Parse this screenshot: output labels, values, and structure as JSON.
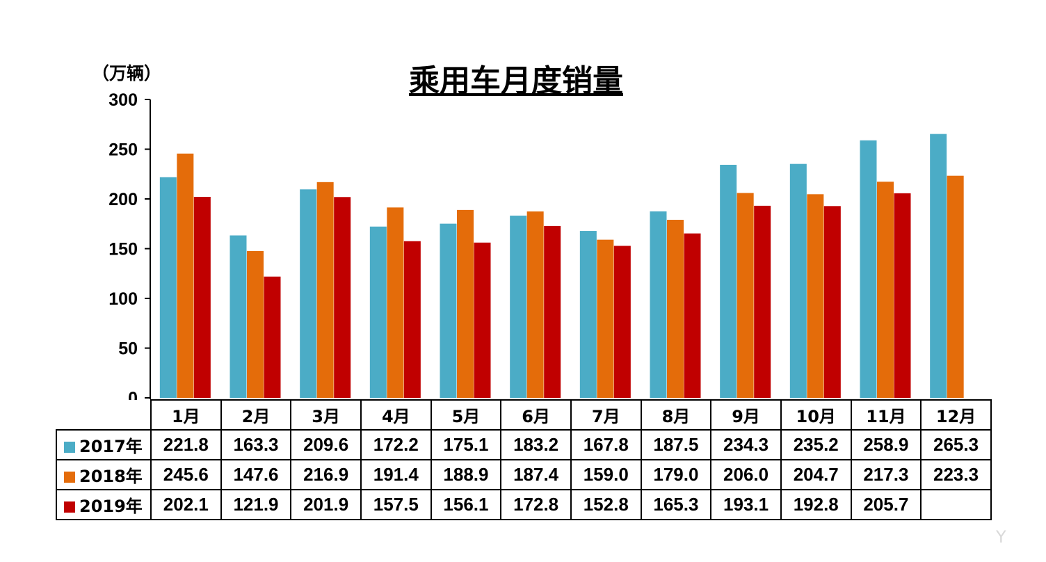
{
  "unit_label": "（万辆）",
  "watermark_text": "Y",
  "colors": {
    "2017年": "#4BACC6",
    "2018年": "#E46C0A",
    "2019年": "#C00000"
  },
  "chart_data": {
    "type": "bar",
    "title": "乘用车月度销量",
    "ylabel": "（万辆）",
    "xlabel": "",
    "ylim": [
      0,
      300
    ],
    "yticks": [
      "0",
      "50",
      "100",
      "150",
      "200",
      "250",
      "300"
    ],
    "categories": [
      "1月",
      "2月",
      "3月",
      "4月",
      "5月",
      "6月",
      "7月",
      "8月",
      "9月",
      "10月",
      "11月",
      "12月"
    ],
    "series": [
      {
        "name": "2017年",
        "color": "#4BACC6",
        "values": [
          221.8,
          163.3,
          209.6,
          172.2,
          175.1,
          183.2,
          167.8,
          187.5,
          234.3,
          235.2,
          258.9,
          265.3
        ],
        "labels": [
          "221.8",
          "163.3",
          "209.6",
          "172.2",
          "175.1",
          "183.2",
          "167.8",
          "187.5",
          "234.3",
          "235.2",
          "258.9",
          "265.3"
        ]
      },
      {
        "name": "2018年",
        "color": "#E46C0A",
        "values": [
          245.6,
          147.6,
          216.9,
          191.4,
          188.9,
          187.4,
          159.0,
          179.0,
          206.0,
          204.7,
          217.3,
          223.3
        ],
        "labels": [
          "245.6",
          "147.6",
          "216.9",
          "191.4",
          "188.9",
          "187.4",
          "159.0",
          "179.0",
          "206.0",
          "204.7",
          "217.3",
          "223.3"
        ]
      },
      {
        "name": "2019年",
        "color": "#C00000",
        "values": [
          202.1,
          121.9,
          201.9,
          157.5,
          156.1,
          172.8,
          152.8,
          165.3,
          193.1,
          192.8,
          205.7,
          null
        ],
        "labels": [
          "202.1",
          "121.9",
          "201.9",
          "157.5",
          "156.1",
          "172.8",
          "152.8",
          "165.3",
          "193.1",
          "192.8",
          "205.7",
          ""
        ]
      }
    ],
    "grid": false,
    "legend": "data-table"
  }
}
